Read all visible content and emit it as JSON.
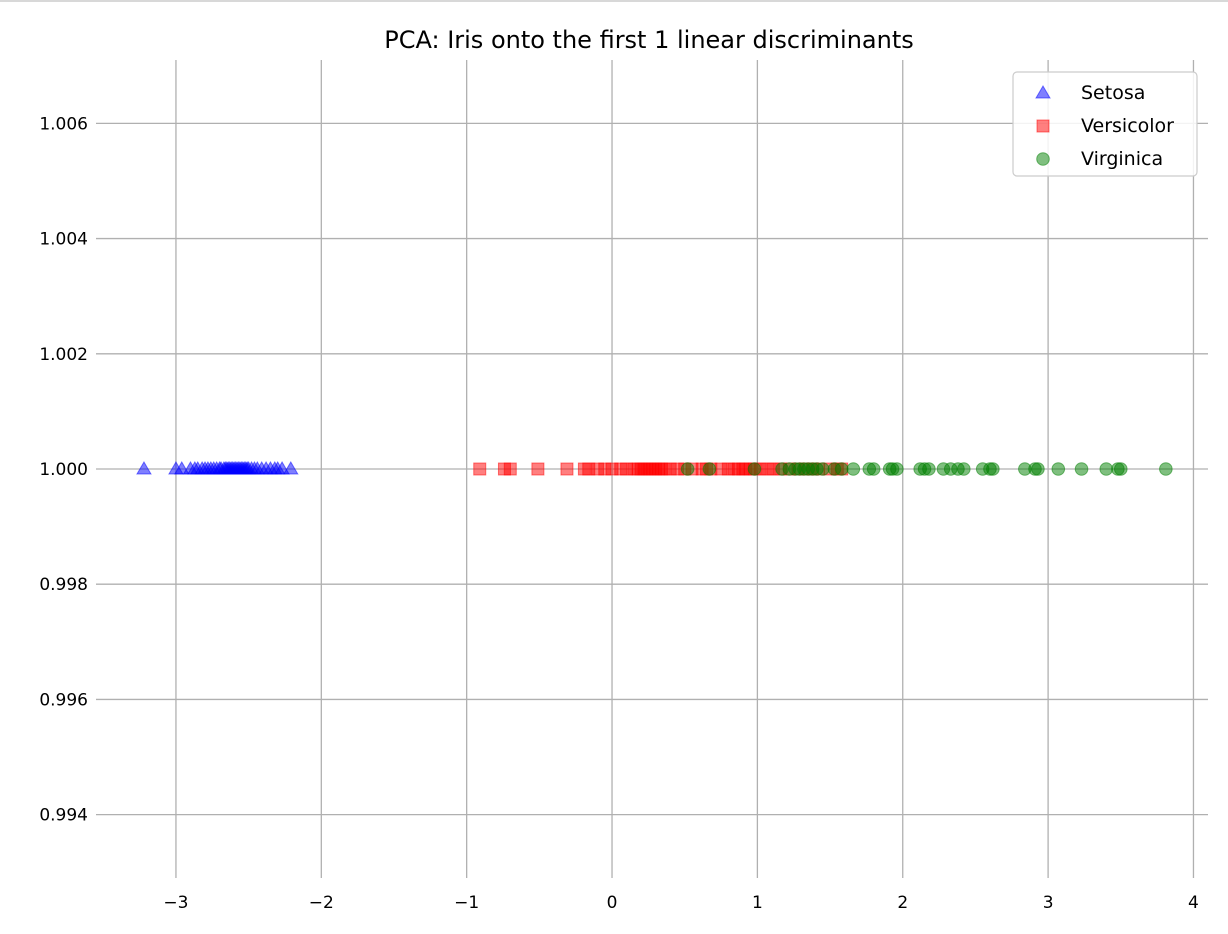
{
  "chart_data": {
    "type": "scatter",
    "title": "PCA: Iris onto the first 1 linear discriminants",
    "xlabel": "",
    "ylabel": "",
    "xlim": [
      -3.55,
      4.1
    ],
    "ylim": [
      0.9929,
      1.0071
    ],
    "x_ticks": [
      -3,
      -2,
      -1,
      0,
      1,
      2,
      3,
      4
    ],
    "x_tick_labels": [
      "−3",
      "−2",
      "−1",
      "0",
      "1",
      "2",
      "3",
      "4"
    ],
    "y_ticks": [
      0.994,
      0.996,
      0.998,
      1.0,
      1.002,
      1.004,
      1.006
    ],
    "y_tick_labels": [
      "0.994",
      "0.996",
      "0.998",
      "1.000",
      "1.002",
      "1.004",
      "1.006"
    ],
    "grid": true,
    "legend_position": "top-right",
    "series": [
      {
        "name": "Setosa",
        "marker": "triangle",
        "color": "#0000ff",
        "x": [
          -3.22,
          -3.0,
          -2.96,
          -2.9,
          -2.87,
          -2.85,
          -2.82,
          -2.8,
          -2.78,
          -2.76,
          -2.74,
          -2.72,
          -2.7,
          -2.69,
          -2.67,
          -2.66,
          -2.65,
          -2.64,
          -2.63,
          -2.62,
          -2.61,
          -2.6,
          -2.59,
          -2.58,
          -2.57,
          -2.56,
          -2.55,
          -2.54,
          -2.53,
          -2.52,
          -2.51,
          -2.5,
          -2.48,
          -2.46,
          -2.44,
          -2.41,
          -2.38,
          -2.35,
          -2.32,
          -2.3,
          -2.27,
          -2.21
        ],
        "y": [
          1.0,
          1.0,
          1.0,
          1.0,
          1.0,
          1.0,
          1.0,
          1.0,
          1.0,
          1.0,
          1.0,
          1.0,
          1.0,
          1.0,
          1.0,
          1.0,
          1.0,
          1.0,
          1.0,
          1.0,
          1.0,
          1.0,
          1.0,
          1.0,
          1.0,
          1.0,
          1.0,
          1.0,
          1.0,
          1.0,
          1.0,
          1.0,
          1.0,
          1.0,
          1.0,
          1.0,
          1.0,
          1.0,
          1.0,
          1.0,
          1.0,
          1.0
        ]
      },
      {
        "name": "Versicolor",
        "marker": "square",
        "color": "#ff0000",
        "x": [
          -0.91,
          -0.74,
          -0.7,
          -0.51,
          -0.31,
          -0.19,
          -0.16,
          -0.1,
          -0.05,
          0.0,
          0.06,
          0.1,
          0.15,
          0.18,
          0.2,
          0.22,
          0.24,
          0.26,
          0.28,
          0.3,
          0.32,
          0.34,
          0.36,
          0.4,
          0.45,
          0.5,
          0.55,
          0.62,
          0.65,
          0.68,
          0.75,
          0.8,
          0.84,
          0.87,
          0.9,
          0.92,
          0.95,
          0.98,
          1.02,
          1.07,
          1.11,
          1.16,
          1.22,
          1.28,
          1.33,
          1.38,
          1.42,
          1.5,
          1.55,
          1.58
        ],
        "y": [
          1.0,
          1.0,
          1.0,
          1.0,
          1.0,
          1.0,
          1.0,
          1.0,
          1.0,
          1.0,
          1.0,
          1.0,
          1.0,
          1.0,
          1.0,
          1.0,
          1.0,
          1.0,
          1.0,
          1.0,
          1.0,
          1.0,
          1.0,
          1.0,
          1.0,
          1.0,
          1.0,
          1.0,
          1.0,
          1.0,
          1.0,
          1.0,
          1.0,
          1.0,
          1.0,
          1.0,
          1.0,
          1.0,
          1.0,
          1.0,
          1.0,
          1.0,
          1.0,
          1.0,
          1.0,
          1.0,
          1.0,
          1.0,
          1.0,
          1.0
        ]
      },
      {
        "name": "Virginica",
        "marker": "circle",
        "color": "#008000",
        "x": [
          0.52,
          0.67,
          0.98,
          1.17,
          1.22,
          1.26,
          1.29,
          1.32,
          1.35,
          1.38,
          1.41,
          1.45,
          1.53,
          1.58,
          1.66,
          1.77,
          1.8,
          1.91,
          1.93,
          1.96,
          2.12,
          2.15,
          2.18,
          2.28,
          2.33,
          2.38,
          2.42,
          2.55,
          2.6,
          2.62,
          2.84,
          2.91,
          2.93,
          3.07,
          3.23,
          3.4,
          3.48,
          3.5,
          3.81
        ],
        "y": [
          1.0,
          1.0,
          1.0,
          1.0,
          1.0,
          1.0,
          1.0,
          1.0,
          1.0,
          1.0,
          1.0,
          1.0,
          1.0,
          1.0,
          1.0,
          1.0,
          1.0,
          1.0,
          1.0,
          1.0,
          1.0,
          1.0,
          1.0,
          1.0,
          1.0,
          1.0,
          1.0,
          1.0,
          1.0,
          1.0,
          1.0,
          1.0,
          1.0,
          1.0,
          1.0,
          1.0,
          1.0,
          1.0,
          1.0
        ]
      }
    ]
  }
}
